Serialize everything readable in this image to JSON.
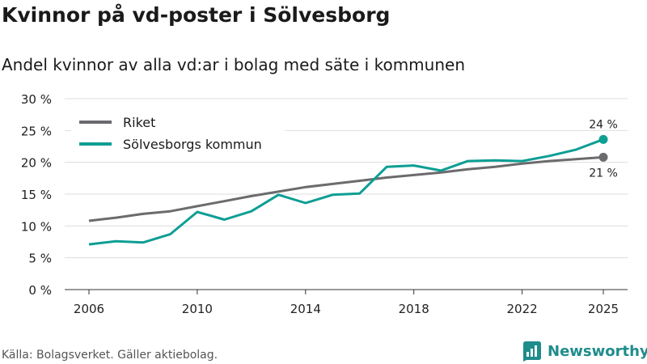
{
  "header": {
    "title": "Kvinnor på vd-poster i Sölvesborg",
    "subtitle": "Andel kvinnor av alla vd:ar i bolag med säte i kommunen"
  },
  "footer": {
    "source": "Källa: Bolagsverket. Gäller aktiebolag.",
    "brand": "Newsworthy",
    "brand_color": "#1f8c8c"
  },
  "chart_data": {
    "type": "line",
    "title": "Kvinnor på vd-poster i Sölvesborg",
    "subtitle": "Andel kvinnor av alla vd:ar i bolag med säte i kommunen",
    "xlabel": "",
    "ylabel": "",
    "x": [
      2006,
      2007,
      2008,
      2009,
      2010,
      2011,
      2012,
      2013,
      2014,
      2015,
      2016,
      2017,
      2018,
      2019,
      2020,
      2021,
      2022,
      2023,
      2024,
      2025
    ],
    "x_ticks": [
      2006,
      2010,
      2014,
      2018,
      2022,
      2025
    ],
    "x_tick_labels": [
      "2006",
      "2010",
      "2014",
      "2018",
      "2022",
      "2025"
    ],
    "ylim": [
      0,
      30
    ],
    "y_ticks": [
      0,
      5,
      10,
      15,
      20,
      25,
      30
    ],
    "y_tick_labels": [
      "0 %",
      "5 %",
      "10 %",
      "15 %",
      "20 %",
      "25 %",
      "30 %"
    ],
    "grid": true,
    "legend_position": "top-left",
    "series": [
      {
        "name": "Riket",
        "color": "#6b6b6e",
        "values": [
          10.8,
          11.3,
          11.9,
          12.3,
          13.1,
          13.9,
          14.7,
          15.4,
          16.1,
          16.6,
          17.1,
          17.6,
          18.0,
          18.4,
          18.9,
          19.3,
          19.8,
          20.2,
          20.5,
          20.8
        ],
        "end_label": "21 %"
      },
      {
        "name": "Sölvesborgs kommun",
        "color": "#0d9e94",
        "values": [
          7.1,
          7.6,
          7.4,
          8.7,
          12.2,
          11.0,
          12.3,
          14.9,
          13.6,
          14.9,
          15.1,
          19.3,
          19.5,
          18.7,
          20.2,
          20.3,
          20.2,
          21.0,
          22.0,
          23.6
        ],
        "end_label": "24 %"
      }
    ]
  }
}
